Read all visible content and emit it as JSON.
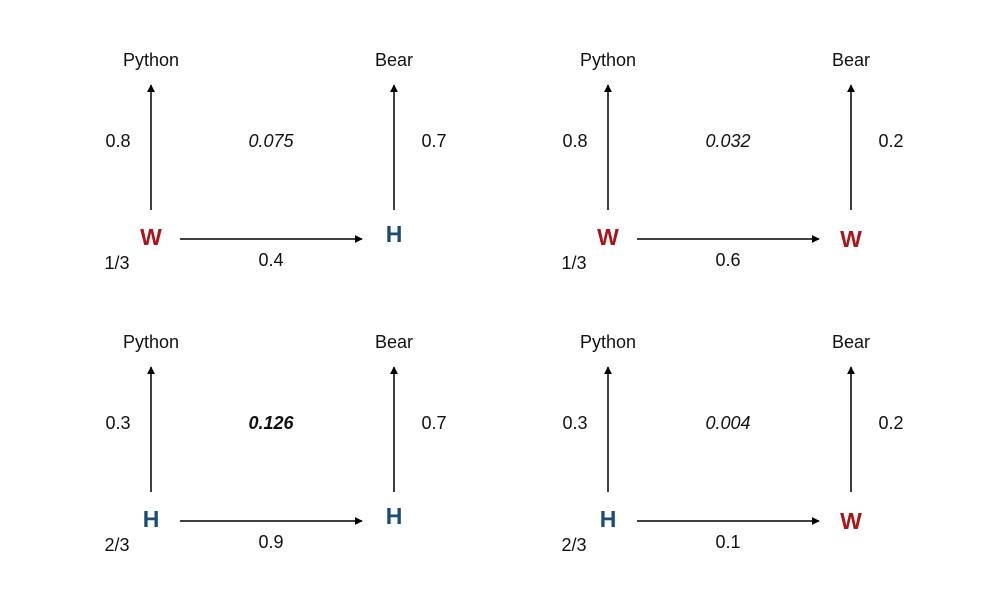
{
  "colors": {
    "W": "#a8161c",
    "H": "#1b4b77"
  },
  "panels": [
    {
      "top_left": "Python",
      "top_right": "Bear",
      "left_emit": "0.8",
      "right_emit": "0.7",
      "product": "0.075",
      "product_bold": false,
      "state_start": "W",
      "state_end": "H",
      "prior": "1/3",
      "transition": "0.4"
    },
    {
      "top_left": "Python",
      "top_right": "Bear",
      "left_emit": "0.8",
      "right_emit": "0.2",
      "product": "0.032",
      "product_bold": false,
      "state_start": "W",
      "state_end": "W",
      "prior": "1/3",
      "transition": "0.6"
    },
    {
      "top_left": "Python",
      "top_right": "Bear",
      "left_emit": "0.3",
      "right_emit": "0.7",
      "product": "0.126",
      "product_bold": true,
      "state_start": "H",
      "state_end": "H",
      "prior": "2/3",
      "transition": "0.9"
    },
    {
      "top_left": "Python",
      "top_right": "Bear",
      "left_emit": "0.3",
      "right_emit": "0.2",
      "product": "0.004",
      "product_bold": false,
      "state_start": "H",
      "state_end": "W",
      "prior": "2/3",
      "transition": "0.1"
    }
  ]
}
